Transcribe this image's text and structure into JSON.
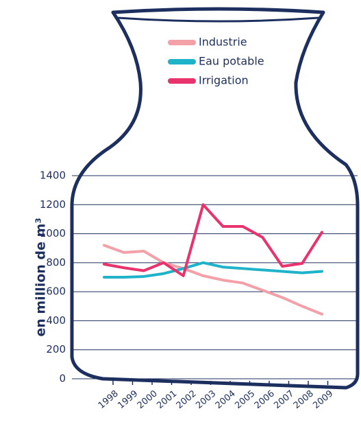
{
  "chart_data": {
    "type": "line",
    "y_label": "en million de m³",
    "categories": [
      "1998",
      "1999",
      "2000",
      "2001",
      "2002",
      "2003",
      "2004",
      "2005",
      "2006",
      "2007",
      "2008",
      "2009"
    ],
    "series": [
      {
        "name": "Industrie",
        "color": "#f4a0a8",
        "values": [
          920,
          870,
          880,
          800,
          760,
          710,
          680,
          660,
          610,
          560,
          500,
          445
        ]
      },
      {
        "name": "Eau potable",
        "color": "#1fb3c9",
        "values": [
          700,
          700,
          705,
          725,
          760,
          800,
          770,
          760,
          750,
          740,
          730,
          740
        ]
      },
      {
        "name": "Irrigation",
        "color": "#e8336d",
        "values": [
          790,
          765,
          745,
          800,
          710,
          1200,
          1050,
          1050,
          975,
          775,
          795,
          1010
        ]
      }
    ],
    "ylim": [
      0,
      1400
    ],
    "yticks": [
      0,
      200,
      400,
      600,
      800,
      1000,
      1200,
      1400
    ],
    "grid": true
  }
}
